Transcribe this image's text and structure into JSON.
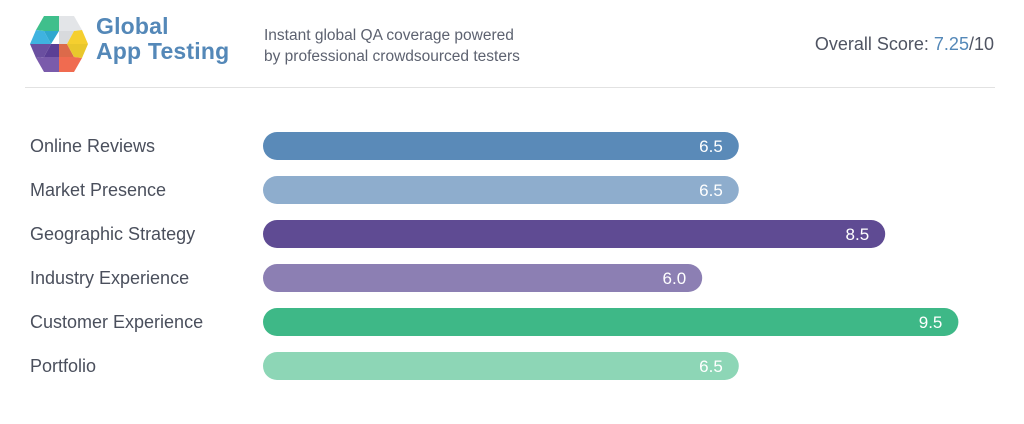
{
  "header": {
    "brand_line1": "Global",
    "brand_line2": "App Testing",
    "tagline_line1": "Instant global QA coverage powered",
    "tagline_line2": "by professional crowdsourced testers",
    "overall_label": "Overall Score: ",
    "overall_score": "7.25",
    "overall_max": "/10",
    "logo_icon": "hexagon-cube-logo-icon"
  },
  "colors": {
    "brand": "#5488b8",
    "text": "#4a4f5c"
  },
  "chart_data": {
    "type": "bar",
    "orientation": "horizontal",
    "title": "",
    "xlabel": "",
    "ylabel": "",
    "xlim": [
      0,
      10
    ],
    "grid": false,
    "categories": [
      "Online Reviews",
      "Market Presence",
      "Geographic Strategy",
      "Industry Experience",
      "Customer Experience",
      "Portfolio"
    ],
    "values": [
      6.5,
      6.5,
      8.5,
      6.0,
      9.5,
      6.5
    ],
    "value_labels": [
      "6.5",
      "6.5",
      "8.5",
      "6.0",
      "9.5",
      "6.5"
    ],
    "bar_colors": [
      "#5a8ab8",
      "#8eadcd",
      "#5f4b93",
      "#8c7fb3",
      "#3eb887",
      "#8dd6b6"
    ]
  }
}
